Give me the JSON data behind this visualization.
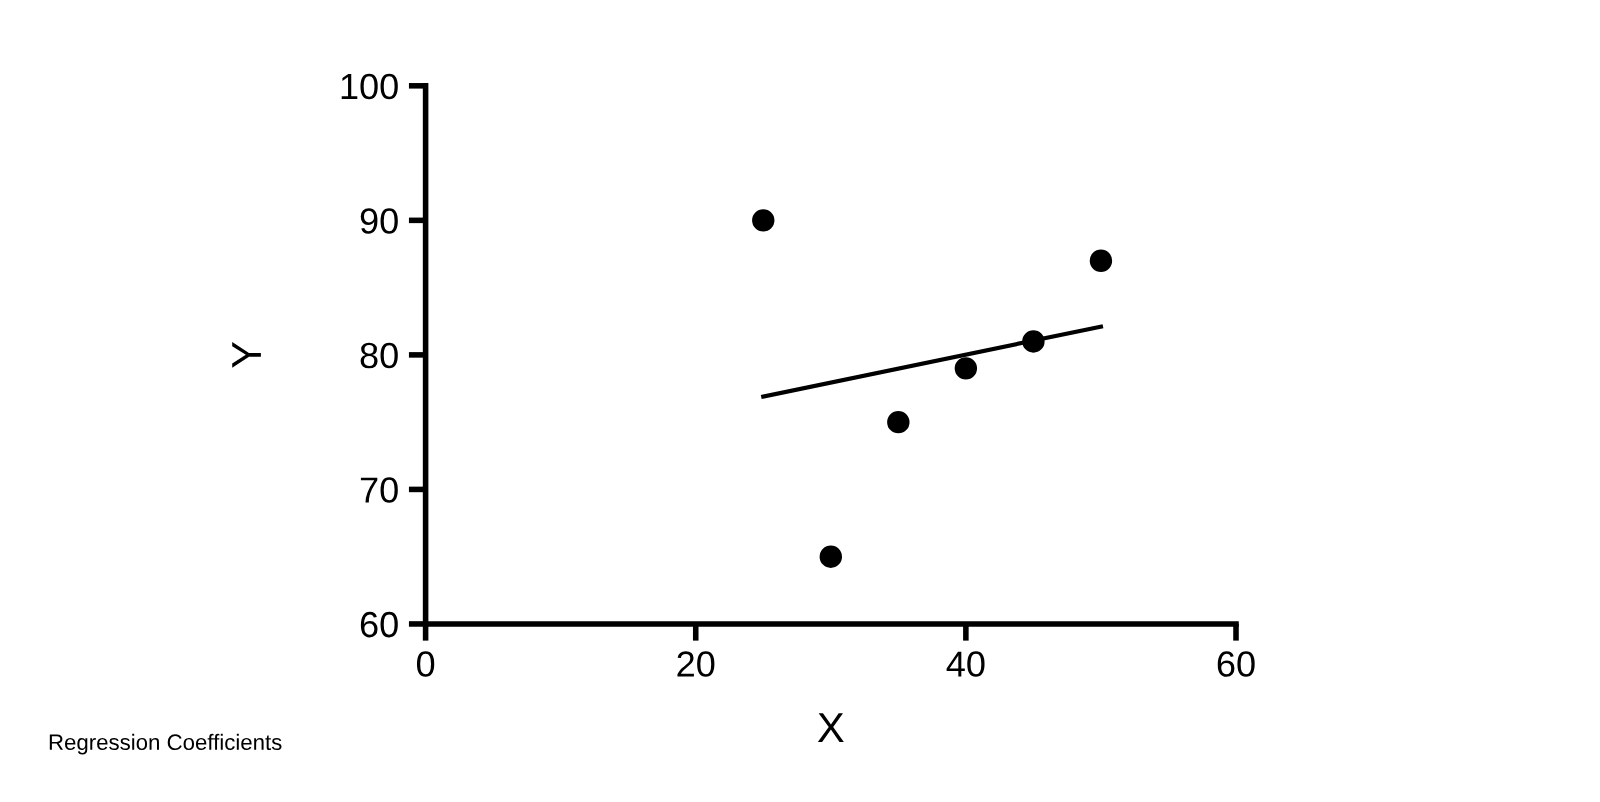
{
  "chart_data": {
    "type": "scatter",
    "xlabel": "X",
    "ylabel": "Y",
    "series": [
      {
        "color": "#000000",
        "x": [
          25,
          30,
          35,
          40,
          45,
          50
        ],
        "values": [
          90,
          65,
          75,
          79,
          81,
          87
        ],
        "marker": "circle"
      },
      {
        "type": "line",
        "color": "#000000",
        "x": [
          25,
          50
        ],
        "values": [
          76.9,
          82.1
        ],
        "marker": "none",
        "line_style": "solid"
      }
    ],
    "xlim": [
      0,
      60
    ],
    "xticks": [
      0,
      20,
      40,
      60
    ],
    "ylim": [
      60,
      100
    ],
    "yticks": [
      60,
      70,
      80,
      90,
      100
    ],
    "grid": false,
    "legend": false,
    "annotations": [
      "Regression Coefficients"
    ]
  }
}
